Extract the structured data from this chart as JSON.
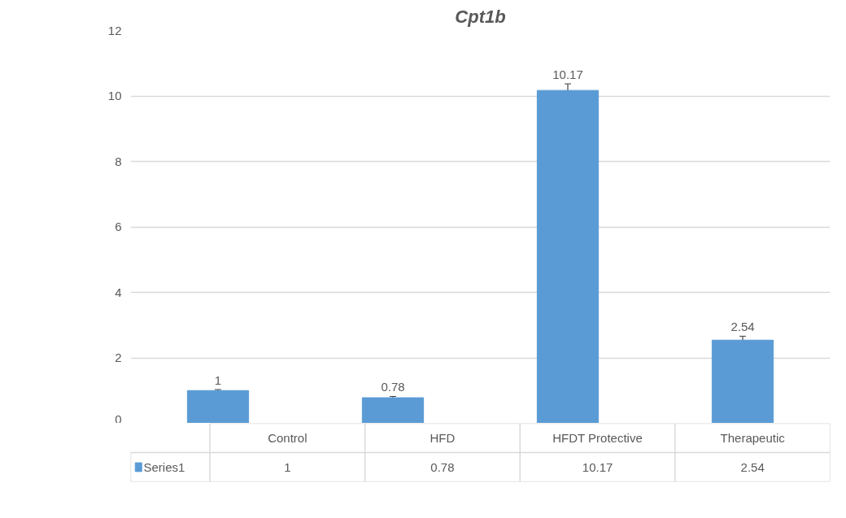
{
  "chart_data": {
    "type": "bar",
    "title": "Cpt1b",
    "categories": [
      "Control",
      "HFD",
      "HFDT Protective",
      "Therapeutic"
    ],
    "series": [
      {
        "name": "Series1",
        "color": "#5b9bd5",
        "values": [
          1,
          0.78,
          10.17,
          2.54
        ],
        "errors": [
          0.03,
          0.04,
          0.2,
          0.12
        ]
      }
    ],
    "annotations": [
      "1",
      "0.78",
      "10.17",
      "2.54"
    ],
    "ylim": [
      0,
      12
    ],
    "yticks": [
      0,
      2,
      4,
      6,
      8,
      10,
      12
    ],
    "grid": "y",
    "data_labels": true,
    "legend": "bottom"
  }
}
